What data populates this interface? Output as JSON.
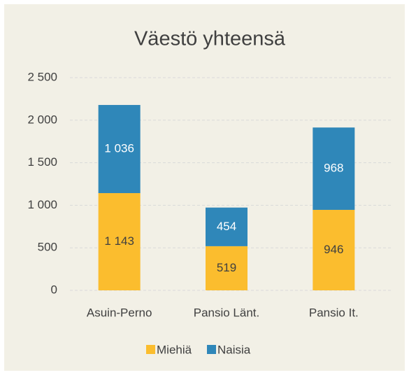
{
  "chart_data": {
    "type": "stacked_bar",
    "title": "Väestö yhteensä",
    "categories": [
      "Asuin-Perno",
      "Pansio Länt.",
      "Pansio It."
    ],
    "series": [
      {
        "name": "Miehiä",
        "color": "#fbbd2e",
        "values": [
          1143,
          519,
          946
        ],
        "value_labels": [
          "1 143",
          "519",
          "946"
        ]
      },
      {
        "name": "Naisia",
        "color": "#2f87b9",
        "values": [
          1036,
          454,
          968
        ],
        "value_labels": [
          "1 036",
          "454",
          "968"
        ]
      }
    ],
    "ylim": [
      0,
      2500
    ],
    "yticks": [
      0,
      500,
      {
        "value": 1000,
        "label": "1 000"
      },
      {
        "value": 1500,
        "label": "1 500"
      },
      {
        "value": 2000,
        "label": "2 000"
      },
      {
        "value": 2500,
        "label": "2 500"
      }
    ],
    "grid": true,
    "legend": "bottom"
  }
}
